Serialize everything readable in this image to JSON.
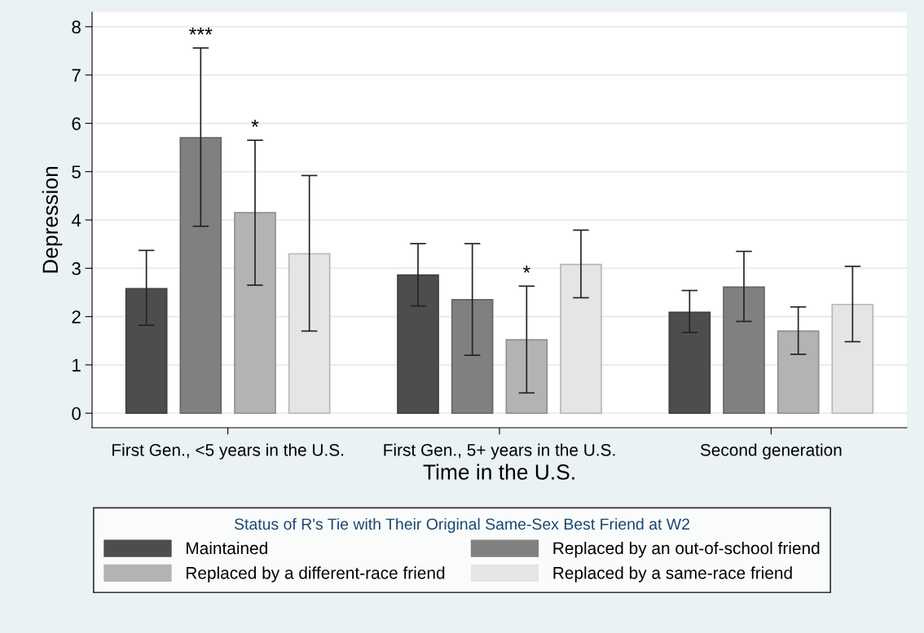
{
  "chart_data": {
    "type": "bar",
    "xlabel": "Time in the U.S.",
    "ylabel": "Depression",
    "legend_title": "Status of R's Tie with Their Original Same-Sex Best Friend at W2",
    "categories": [
      "First Gen., <5 years in the U.S.",
      "First Gen., 5+ years in the U.S.",
      "Second generation"
    ],
    "series": [
      {
        "name": "Maintained",
        "color": "#4d4d4d",
        "values": [
          2.58,
          2.86,
          2.09
        ],
        "errors": [
          [
            1.82,
            3.37
          ],
          [
            2.22,
            3.51
          ],
          [
            1.67,
            2.54
          ]
        ]
      },
      {
        "name": "Replaced by an out-of-school friend",
        "color": "#808080",
        "values": [
          5.7,
          2.35,
          2.61
        ],
        "errors": [
          [
            3.87,
            7.56
          ],
          [
            1.2,
            3.51
          ],
          [
            1.9,
            3.35
          ]
        ]
      },
      {
        "name": "Replaced by a different-race friend",
        "color": "#b3b3b3",
        "values": [
          4.15,
          1.52,
          1.7
        ],
        "errors": [
          [
            2.65,
            5.65
          ],
          [
            0.42,
            2.63
          ],
          [
            1.22,
            2.2
          ]
        ]
      },
      {
        "name": "Replaced by a same-race friend",
        "color": "#e5e5e5",
        "values": [
          3.3,
          3.08,
          2.25
        ],
        "errors": [
          [
            1.7,
            4.92
          ],
          [
            2.39,
            3.79
          ],
          [
            1.48,
            3.04
          ]
        ]
      }
    ],
    "annotations": [
      "***",
      "*",
      "*"
    ],
    "ylim": [
      -0.3,
      8.3
    ],
    "yticks": [
      0,
      1,
      2,
      3,
      4,
      5,
      6,
      7,
      8
    ],
    "grid": "y",
    "legend": "bottom"
  }
}
